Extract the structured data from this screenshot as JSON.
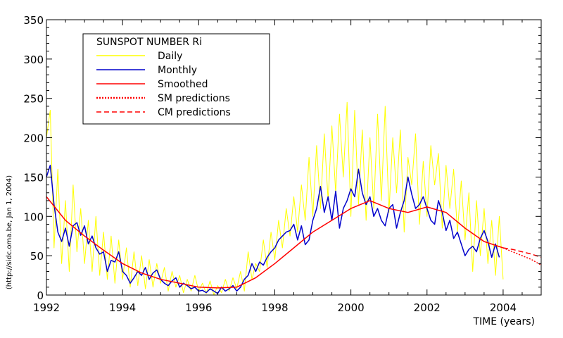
{
  "chart_data": {
    "type": "line",
    "title": "",
    "xlabel": "TIME (years)",
    "ylabel": "",
    "side_note": "(http://sidc.oma.be, Jan  1, 2004)",
    "xlim": [
      1992,
      2005
    ],
    "ylim": [
      0,
      350
    ],
    "x_ticks": [
      1992,
      1994,
      1996,
      1998,
      2000,
      2002,
      2004
    ],
    "y_ticks": [
      0,
      50,
      100,
      150,
      200,
      250,
      300,
      350
    ],
    "grid": false,
    "legend": {
      "title": "SUNSPOT NUMBER Ri",
      "placement": "top-left",
      "entries": [
        {
          "label": "Daily",
          "color": "#ffff00",
          "style": "solid"
        },
        {
          "label": "Monthly",
          "color": "#0000cc",
          "style": "solid"
        },
        {
          "label": "Smoothed",
          "color": "#ff0000",
          "style": "solid"
        },
        {
          "label": "SM predictions",
          "color": "#ff0000",
          "style": "dotted"
        },
        {
          "label": "CM predictions",
          "color": "#ff0000",
          "style": "dashed"
        }
      ]
    },
    "series": [
      {
        "name": "Daily",
        "color": "#ffff00",
        "x": [
          1992.0,
          1992.1,
          1992.2,
          1992.3,
          1992.4,
          1992.5,
          1992.6,
          1992.7,
          1992.8,
          1992.9,
          1993.0,
          1993.1,
          1993.2,
          1993.3,
          1993.4,
          1993.5,
          1993.6,
          1993.7,
          1993.8,
          1993.9,
          1994.0,
          1994.1,
          1994.2,
          1994.3,
          1994.4,
          1994.5,
          1994.6,
          1994.7,
          1994.8,
          1994.9,
          1995.0,
          1995.1,
          1995.2,
          1995.3,
          1995.4,
          1995.5,
          1995.6,
          1995.7,
          1995.8,
          1995.9,
          1996.0,
          1996.1,
          1996.2,
          1996.3,
          1996.4,
          1996.5,
          1996.6,
          1996.7,
          1996.8,
          1996.9,
          1997.0,
          1997.1,
          1997.2,
          1997.3,
          1997.4,
          1997.5,
          1997.6,
          1997.7,
          1997.8,
          1997.9,
          1998.0,
          1998.1,
          1998.2,
          1998.3,
          1998.4,
          1998.5,
          1998.6,
          1998.7,
          1998.8,
          1998.9,
          1999.0,
          1999.1,
          1999.2,
          1999.3,
          1999.4,
          1999.5,
          1999.6,
          1999.7,
          1999.8,
          1999.9,
          2000.0,
          2000.1,
          2000.2,
          2000.3,
          2000.4,
          2000.5,
          2000.6,
          2000.7,
          2000.8,
          2000.9,
          2001.0,
          2001.1,
          2001.2,
          2001.3,
          2001.4,
          2001.5,
          2001.6,
          2001.7,
          2001.8,
          2001.9,
          2002.0,
          2002.1,
          2002.2,
          2002.3,
          2002.4,
          2002.5,
          2002.6,
          2002.7,
          2002.8,
          2002.9,
          2003.0,
          2003.1,
          2003.2,
          2003.3,
          2003.4,
          2003.5,
          2003.6,
          2003.7,
          2003.8,
          2003.9,
          2004.0
        ],
        "values": [
          200,
          235,
          60,
          160,
          40,
          120,
          30,
          140,
          55,
          110,
          40,
          95,
          30,
          100,
          25,
          80,
          20,
          75,
          15,
          70,
          20,
          60,
          10,
          55,
          12,
          50,
          8,
          45,
          10,
          40,
          15,
          35,
          5,
          30,
          10,
          25,
          3,
          20,
          5,
          25,
          5,
          15,
          2,
          18,
          0,
          12,
          3,
          20,
          5,
          22,
          8,
          30,
          5,
          55,
          20,
          40,
          30,
          70,
          35,
          80,
          45,
          95,
          60,
          110,
          75,
          125,
          80,
          140,
          95,
          175,
          100,
          190,
          110,
          205,
          120,
          215,
          130,
          230,
          150,
          245,
          100,
          235,
          115,
          210,
          95,
          200,
          110,
          230,
          120,
          240,
          105,
          200,
          130,
          210,
          80,
          175,
          140,
          205,
          90,
          170,
          100,
          190,
          140,
          180,
          85,
          165,
          110,
          160,
          80,
          145,
          70,
          130,
          30,
          120,
          50,
          110,
          40,
          95,
          25,
          100,
          20
        ]
      },
      {
        "name": "Monthly",
        "color": "#0000cc",
        "x": [
          1992.0,
          1992.1,
          1992.2,
          1992.3,
          1992.4,
          1992.5,
          1992.6,
          1992.7,
          1992.8,
          1992.9,
          1993.0,
          1993.1,
          1993.2,
          1993.3,
          1993.4,
          1993.5,
          1993.6,
          1993.7,
          1993.8,
          1993.9,
          1994.0,
          1994.1,
          1994.2,
          1994.3,
          1994.4,
          1994.5,
          1994.6,
          1994.7,
          1994.8,
          1994.9,
          1995.0,
          1995.1,
          1995.2,
          1995.3,
          1995.4,
          1995.5,
          1995.6,
          1995.7,
          1995.8,
          1995.9,
          1996.0,
          1996.1,
          1996.2,
          1996.3,
          1996.4,
          1996.5,
          1996.6,
          1996.7,
          1996.8,
          1996.9,
          1997.0,
          1997.1,
          1997.2,
          1997.3,
          1997.4,
          1997.5,
          1997.6,
          1997.7,
          1997.8,
          1997.9,
          1998.0,
          1998.1,
          1998.2,
          1998.3,
          1998.4,
          1998.5,
          1998.6,
          1998.7,
          1998.8,
          1998.9,
          1999.0,
          1999.1,
          1999.2,
          1999.3,
          1999.4,
          1999.5,
          1999.6,
          1999.7,
          1999.8,
          1999.9,
          2000.0,
          2000.1,
          2000.2,
          2000.3,
          2000.4,
          2000.5,
          2000.6,
          2000.7,
          2000.8,
          2000.9,
          2001.0,
          2001.1,
          2001.2,
          2001.3,
          2001.4,
          2001.5,
          2001.6,
          2001.7,
          2001.8,
          2001.9,
          2002.0,
          2002.1,
          2002.2,
          2002.3,
          2002.4,
          2002.5,
          2002.6,
          2002.7,
          2002.8,
          2002.9,
          2003.0,
          2003.1,
          2003.2,
          2003.3,
          2003.4,
          2003.5,
          2003.6,
          2003.7,
          2003.8,
          2003.9
        ],
        "values": [
          150,
          165,
          115,
          80,
          68,
          85,
          62,
          88,
          92,
          76,
          88,
          65,
          75,
          60,
          52,
          55,
          30,
          44,
          42,
          55,
          30,
          25,
          15,
          22,
          30,
          25,
          35,
          20,
          28,
          32,
          20,
          15,
          12,
          18,
          22,
          10,
          15,
          12,
          8,
          10,
          5,
          6,
          3,
          8,
          5,
          2,
          10,
          5,
          8,
          12,
          5,
          10,
          20,
          25,
          40,
          30,
          42,
          38,
          48,
          55,
          60,
          70,
          75,
          80,
          82,
          90,
          70,
          88,
          64,
          70,
          95,
          110,
          138,
          105,
          125,
          95,
          132,
          85,
          110,
          120,
          135,
          125,
          160,
          130,
          115,
          125,
          100,
          110,
          95,
          88,
          110,
          115,
          85,
          105,
          120,
          150,
          128,
          110,
          115,
          125,
          110,
          95,
          90,
          120,
          105,
          82,
          95,
          72,
          80,
          65,
          50,
          58,
          62,
          55,
          72,
          82,
          68,
          48,
          65,
          48
        ]
      },
      {
        "name": "Smoothed",
        "color": "#ff0000",
        "x": [
          1992.0,
          1992.5,
          1993.0,
          1993.5,
          1994.0,
          1994.5,
          1995.0,
          1995.5,
          1996.0,
          1996.5,
          1997.0,
          1997.5,
          1998.0,
          1998.5,
          1999.0,
          1999.5,
          2000.0,
          2000.5,
          2001.0,
          2001.5,
          2002.0,
          2002.5,
          2003.0,
          2003.5,
          2004.0
        ],
        "values": [
          125,
          95,
          75,
          57,
          40,
          28,
          20,
          15,
          10,
          9,
          10,
          22,
          40,
          60,
          80,
          95,
          110,
          120,
          110,
          105,
          112,
          105,
          85,
          68,
          60
        ]
      },
      {
        "name": "SM predictions",
        "color": "#ff0000",
        "style": "dotted",
        "x": [
          2004.0,
          2004.25,
          2004.5,
          2004.75,
          2005.0
        ],
        "values": [
          60,
          55,
          50,
          45,
          38
        ]
      },
      {
        "name": "CM predictions",
        "color": "#ff0000",
        "style": "dashed",
        "x": [
          2004.0,
          2004.25,
          2004.5,
          2004.75,
          2005.0
        ],
        "values": [
          60,
          58,
          55,
          52,
          48
        ]
      }
    ]
  }
}
